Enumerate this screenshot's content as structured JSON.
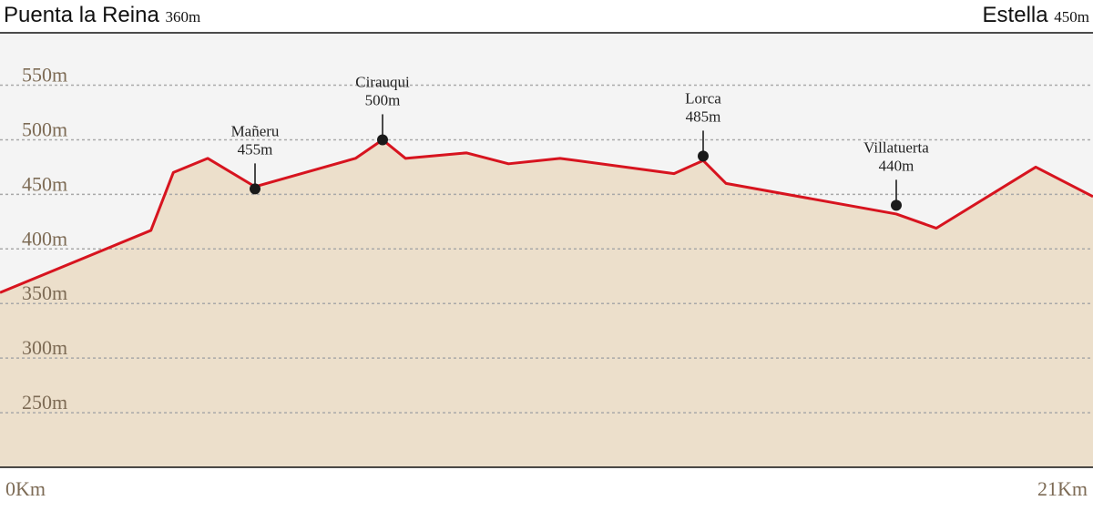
{
  "chart_data": {
    "type": "area",
    "start": {
      "name": "Puenta la Reina",
      "label": "360m"
    },
    "end": {
      "name": "Estella",
      "label": "450m"
    },
    "x": [
      0,
      2.9,
      3.33,
      3.99,
      4.9,
      6.83,
      7.35,
      7.79,
      8.96,
      9.77,
      10.76,
      12.95,
      13.51,
      13.95,
      17.22,
      17.99,
      19.9,
      21
    ],
    "values": [
      360,
      417,
      470,
      483,
      457,
      483,
      500,
      483,
      488,
      478,
      483,
      469,
      481,
      460,
      432,
      419,
      475,
      448
    ],
    "line_color": "#d7141f",
    "fill_color": "#ecdfcb",
    "background": "#f4f4f4",
    "annotations": [
      {
        "name": "Mañeru",
        "x": 4.9,
        "value": 455,
        "label": "455m"
      },
      {
        "name": "Cirauqui",
        "x": 7.35,
        "value": 500,
        "label": "500m"
      },
      {
        "name": "Lorca",
        "x": 13.51,
        "value": 485,
        "label": "485m"
      },
      {
        "name": "Villatuerta",
        "x": 17.22,
        "value": 440,
        "label": "440m"
      }
    ],
    "xlim": [
      0,
      21
    ],
    "xticks": [
      {
        "value": 0,
        "label": "0Km"
      },
      {
        "value": 21,
        "label": "21Km"
      }
    ],
    "ylim": [
      200,
      598
    ],
    "yticks": [
      {
        "value": 550,
        "label": "550m"
      },
      {
        "value": 500,
        "label": "500m"
      },
      {
        "value": 450,
        "label": "450m"
      },
      {
        "value": 400,
        "label": "400m"
      },
      {
        "value": 350,
        "label": "350m"
      },
      {
        "value": 300,
        "label": "300m"
      },
      {
        "value": 250,
        "label": "250m"
      }
    ],
    "grid": true
  }
}
